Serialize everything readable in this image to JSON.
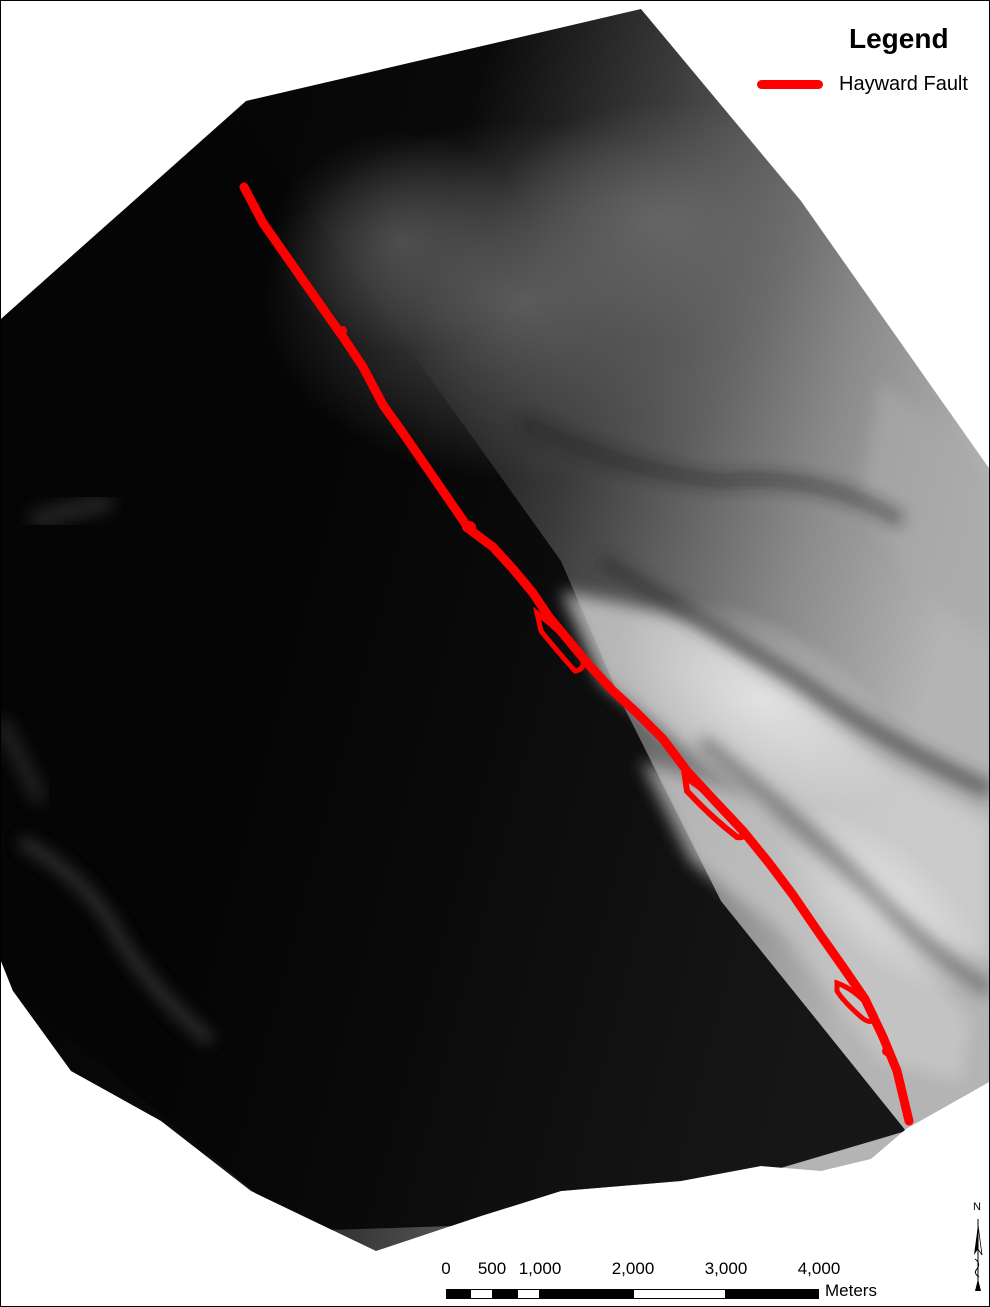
{
  "map": {
    "background_color": "#000000",
    "fault_color": "#ff0000"
  },
  "legend": {
    "title": "Legend",
    "items": [
      {
        "label": "Hayward Fault",
        "color": "#ff0000"
      }
    ]
  },
  "scale_bar": {
    "labels": [
      "0",
      "500",
      "1,000",
      "2,000",
      "3,000",
      "4,000"
    ],
    "units": "Meters"
  },
  "north_arrow": {
    "label": "N"
  }
}
